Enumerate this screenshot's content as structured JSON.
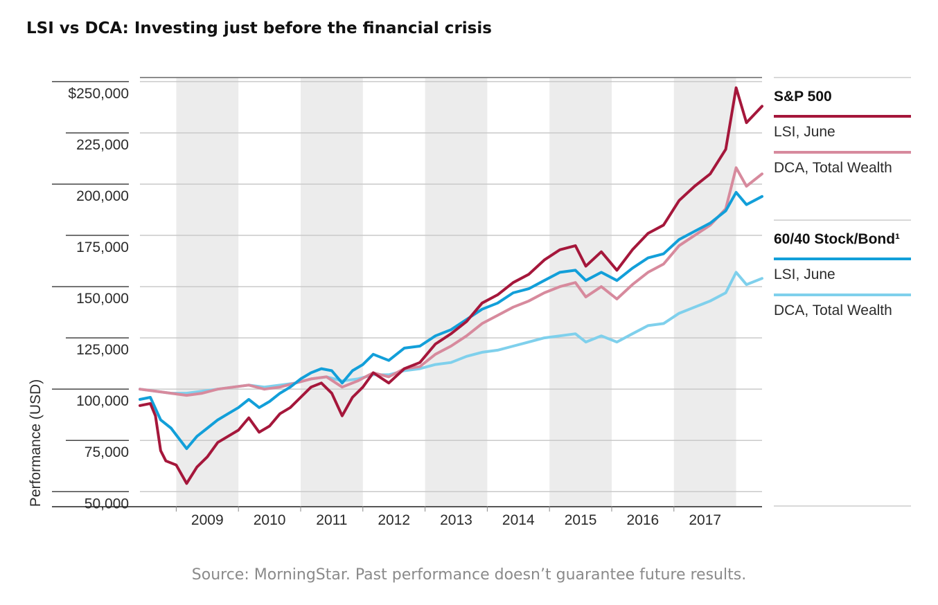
{
  "title": "LSI vs DCA: Investing just before the financial crisis",
  "source": "Source: MorningStar. Past performance doesn’t guarantee future results.",
  "chart_data": {
    "type": "line",
    "ylabel": "Performance (USD)",
    "xlabel": "",
    "ylim": [
      43000,
      252000
    ],
    "y_ticks": [
      {
        "value": 250000,
        "label": "$250,000"
      },
      {
        "value": 225000,
        "label": "225,000"
      },
      {
        "value": 200000,
        "label": "200,000"
      },
      {
        "value": 175000,
        "label": "175,000"
      },
      {
        "value": 150000,
        "label": "150,000"
      },
      {
        "value": 125000,
        "label": "125,000"
      },
      {
        "value": 100000,
        "label": "100,000"
      },
      {
        "value": 75000,
        "label": "75,000"
      },
      {
        "value": 50000,
        "label": "50,000"
      }
    ],
    "x_range": [
      "2008-06",
      "2018-06"
    ],
    "x_ticks": [
      "2009",
      "2010",
      "2011",
      "2012",
      "2013",
      "2014",
      "2015",
      "2016",
      "2017"
    ],
    "shaded_years": [
      "2009",
      "2011",
      "2013",
      "2015",
      "2017"
    ],
    "grid": true,
    "legend_position": "right",
    "legend": [
      {
        "group": "S&P 500",
        "items": [
          {
            "label": "LSI, June",
            "series": 0
          },
          {
            "label": "DCA, Total Wealth",
            "series": 1
          }
        ]
      },
      {
        "group": "60/40 Stock/Bond¹",
        "items": [
          {
            "label": "LSI, June",
            "series": 2
          },
          {
            "label": "DCA, Total Wealth",
            "series": 3
          }
        ]
      }
    ],
    "series": [
      {
        "color": "#a5173b",
        "points": [
          [
            "2008-06",
            92000
          ],
          [
            "2008-08",
            93000
          ],
          [
            "2008-09",
            87000
          ],
          [
            "2008-10",
            70000
          ],
          [
            "2008-11",
            65000
          ],
          [
            "2009-01",
            63000
          ],
          [
            "2009-03",
            54000
          ],
          [
            "2009-05",
            62000
          ],
          [
            "2009-07",
            67000
          ],
          [
            "2009-09",
            74000
          ],
          [
            "2009-11",
            77000
          ],
          [
            "2010-01",
            80000
          ],
          [
            "2010-03",
            86000
          ],
          [
            "2010-05",
            79000
          ],
          [
            "2010-07",
            82000
          ],
          [
            "2010-09",
            88000
          ],
          [
            "2010-11",
            91000
          ],
          [
            "2011-01",
            96000
          ],
          [
            "2011-03",
            101000
          ],
          [
            "2011-05",
            103000
          ],
          [
            "2011-07",
            98000
          ],
          [
            "2011-09",
            87000
          ],
          [
            "2011-11",
            96000
          ],
          [
            "2012-01",
            101000
          ],
          [
            "2012-03",
            108000
          ],
          [
            "2012-06",
            103000
          ],
          [
            "2012-09",
            110000
          ],
          [
            "2012-12",
            113000
          ],
          [
            "2013-03",
            122000
          ],
          [
            "2013-06",
            127000
          ],
          [
            "2013-09",
            133000
          ],
          [
            "2013-12",
            142000
          ],
          [
            "2014-03",
            146000
          ],
          [
            "2014-06",
            152000
          ],
          [
            "2014-09",
            156000
          ],
          [
            "2014-12",
            163000
          ],
          [
            "2015-03",
            168000
          ],
          [
            "2015-06",
            170000
          ],
          [
            "2015-08",
            160000
          ],
          [
            "2015-11",
            167000
          ],
          [
            "2016-02",
            158000
          ],
          [
            "2016-05",
            168000
          ],
          [
            "2016-08",
            176000
          ],
          [
            "2016-11",
            180000
          ],
          [
            "2017-02",
            192000
          ],
          [
            "2017-05",
            199000
          ],
          [
            "2017-08",
            205000
          ],
          [
            "2017-11",
            217000
          ],
          [
            "2018-01",
            247000
          ],
          [
            "2018-03",
            230000
          ],
          [
            "2018-06",
            238000
          ]
        ]
      },
      {
        "color": "#d78a9d",
        "points": [
          [
            "2008-06",
            100000
          ],
          [
            "2008-09",
            99000
          ],
          [
            "2008-12",
            98000
          ],
          [
            "2009-03",
            97000
          ],
          [
            "2009-06",
            98000
          ],
          [
            "2009-09",
            100000
          ],
          [
            "2009-12",
            101000
          ],
          [
            "2010-03",
            102000
          ],
          [
            "2010-06",
            100000
          ],
          [
            "2010-09",
            101000
          ],
          [
            "2010-12",
            103000
          ],
          [
            "2011-03",
            105000
          ],
          [
            "2011-06",
            106000
          ],
          [
            "2011-09",
            101000
          ],
          [
            "2011-12",
            104000
          ],
          [
            "2012-03",
            108000
          ],
          [
            "2012-06",
            106000
          ],
          [
            "2012-09",
            110000
          ],
          [
            "2012-12",
            111000
          ],
          [
            "2013-03",
            117000
          ],
          [
            "2013-06",
            121000
          ],
          [
            "2013-09",
            126000
          ],
          [
            "2013-12",
            132000
          ],
          [
            "2014-03",
            136000
          ],
          [
            "2014-06",
            140000
          ],
          [
            "2014-09",
            143000
          ],
          [
            "2014-12",
            147000
          ],
          [
            "2015-03",
            150000
          ],
          [
            "2015-06",
            152000
          ],
          [
            "2015-08",
            145000
          ],
          [
            "2015-11",
            150000
          ],
          [
            "2016-02",
            144000
          ],
          [
            "2016-05",
            151000
          ],
          [
            "2016-08",
            157000
          ],
          [
            "2016-11",
            161000
          ],
          [
            "2017-02",
            170000
          ],
          [
            "2017-05",
            175000
          ],
          [
            "2017-08",
            180000
          ],
          [
            "2017-11",
            188000
          ],
          [
            "2018-01",
            208000
          ],
          [
            "2018-03",
            199000
          ],
          [
            "2018-06",
            205000
          ]
        ]
      },
      {
        "color": "#129fd9",
        "points": [
          [
            "2008-06",
            95000
          ],
          [
            "2008-08",
            96000
          ],
          [
            "2008-10",
            85000
          ],
          [
            "2008-12",
            81000
          ],
          [
            "2009-03",
            71000
          ],
          [
            "2009-05",
            77000
          ],
          [
            "2009-07",
            81000
          ],
          [
            "2009-09",
            85000
          ],
          [
            "2009-11",
            88000
          ],
          [
            "2010-01",
            91000
          ],
          [
            "2010-03",
            95000
          ],
          [
            "2010-05",
            91000
          ],
          [
            "2010-07",
            94000
          ],
          [
            "2010-09",
            98000
          ],
          [
            "2010-11",
            101000
          ],
          [
            "2011-01",
            105000
          ],
          [
            "2011-03",
            108000
          ],
          [
            "2011-05",
            110000
          ],
          [
            "2011-07",
            109000
          ],
          [
            "2011-09",
            103000
          ],
          [
            "2011-11",
            109000
          ],
          [
            "2012-01",
            112000
          ],
          [
            "2012-03",
            117000
          ],
          [
            "2012-06",
            114000
          ],
          [
            "2012-09",
            120000
          ],
          [
            "2012-12",
            121000
          ],
          [
            "2013-03",
            126000
          ],
          [
            "2013-06",
            129000
          ],
          [
            "2013-09",
            134000
          ],
          [
            "2013-12",
            139000
          ],
          [
            "2014-03",
            142000
          ],
          [
            "2014-06",
            147000
          ],
          [
            "2014-09",
            149000
          ],
          [
            "2014-12",
            153000
          ],
          [
            "2015-03",
            157000
          ],
          [
            "2015-06",
            158000
          ],
          [
            "2015-08",
            153000
          ],
          [
            "2015-11",
            157000
          ],
          [
            "2016-02",
            153000
          ],
          [
            "2016-05",
            159000
          ],
          [
            "2016-08",
            164000
          ],
          [
            "2016-11",
            166000
          ],
          [
            "2017-02",
            173000
          ],
          [
            "2017-05",
            177000
          ],
          [
            "2017-08",
            181000
          ],
          [
            "2017-11",
            187000
          ],
          [
            "2018-01",
            196000
          ],
          [
            "2018-03",
            190000
          ],
          [
            "2018-06",
            194000
          ]
        ]
      },
      {
        "color": "#7fd0ec",
        "points": [
          [
            "2008-06",
            100000
          ],
          [
            "2008-09",
            99000
          ],
          [
            "2008-12",
            98000
          ],
          [
            "2009-03",
            98000
          ],
          [
            "2009-06",
            99000
          ],
          [
            "2009-09",
            100000
          ],
          [
            "2009-12",
            101000
          ],
          [
            "2010-03",
            102000
          ],
          [
            "2010-06",
            101000
          ],
          [
            "2010-09",
            102000
          ],
          [
            "2010-12",
            103000
          ],
          [
            "2011-03",
            105000
          ],
          [
            "2011-06",
            106000
          ],
          [
            "2011-09",
            104000
          ],
          [
            "2011-12",
            105000
          ],
          [
            "2012-03",
            107000
          ],
          [
            "2012-06",
            107000
          ],
          [
            "2012-09",
            109000
          ],
          [
            "2012-12",
            110000
          ],
          [
            "2013-03",
            112000
          ],
          [
            "2013-06",
            113000
          ],
          [
            "2013-09",
            116000
          ],
          [
            "2013-12",
            118000
          ],
          [
            "2014-03",
            119000
          ],
          [
            "2014-06",
            121000
          ],
          [
            "2014-09",
            123000
          ],
          [
            "2014-12",
            125000
          ],
          [
            "2015-03",
            126000
          ],
          [
            "2015-06",
            127000
          ],
          [
            "2015-08",
            123000
          ],
          [
            "2015-11",
            126000
          ],
          [
            "2016-02",
            123000
          ],
          [
            "2016-05",
            127000
          ],
          [
            "2016-08",
            131000
          ],
          [
            "2016-11",
            132000
          ],
          [
            "2017-02",
            137000
          ],
          [
            "2017-05",
            140000
          ],
          [
            "2017-08",
            143000
          ],
          [
            "2017-11",
            147000
          ],
          [
            "2018-01",
            157000
          ],
          [
            "2018-03",
            151000
          ],
          [
            "2018-06",
            154000
          ]
        ]
      }
    ]
  }
}
